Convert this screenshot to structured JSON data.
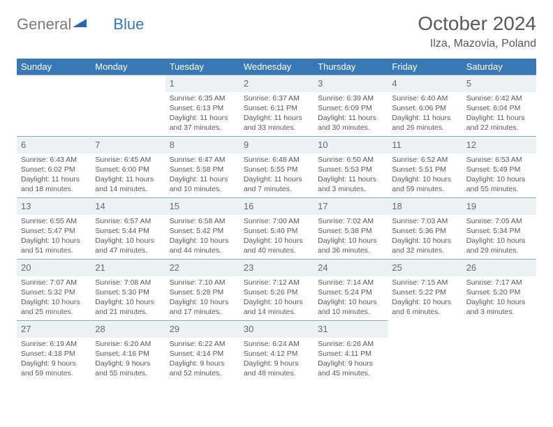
{
  "brand": {
    "part1": "General",
    "part2": "Blue"
  },
  "title": "October 2024",
  "location": "Ilza, Mazovia, Poland",
  "colors": {
    "header_bg": "#3a78b5",
    "header_text": "#ffffff",
    "daynum_bg": "#eef1f4",
    "daynum_border": "#8aa6c2",
    "text": "#595959",
    "background": "#ffffff"
  },
  "weekdays": [
    "Sunday",
    "Monday",
    "Tuesday",
    "Wednesday",
    "Thursday",
    "Friday",
    "Saturday"
  ],
  "weeks": [
    [
      null,
      null,
      {
        "n": "1",
        "sr": "6:35 AM",
        "ss": "6:13 PM",
        "dl": "11 hours and 37 minutes."
      },
      {
        "n": "2",
        "sr": "6:37 AM",
        "ss": "6:11 PM",
        "dl": "11 hours and 33 minutes."
      },
      {
        "n": "3",
        "sr": "6:39 AM",
        "ss": "6:09 PM",
        "dl": "11 hours and 30 minutes."
      },
      {
        "n": "4",
        "sr": "6:40 AM",
        "ss": "6:06 PM",
        "dl": "11 hours and 26 minutes."
      },
      {
        "n": "5",
        "sr": "6:42 AM",
        "ss": "6:04 PM",
        "dl": "11 hours and 22 minutes."
      }
    ],
    [
      {
        "n": "6",
        "sr": "6:43 AM",
        "ss": "6:02 PM",
        "dl": "11 hours and 18 minutes."
      },
      {
        "n": "7",
        "sr": "6:45 AM",
        "ss": "6:00 PM",
        "dl": "11 hours and 14 minutes."
      },
      {
        "n": "8",
        "sr": "6:47 AM",
        "ss": "5:58 PM",
        "dl": "11 hours and 10 minutes."
      },
      {
        "n": "9",
        "sr": "6:48 AM",
        "ss": "5:55 PM",
        "dl": "11 hours and 7 minutes."
      },
      {
        "n": "10",
        "sr": "6:50 AM",
        "ss": "5:53 PM",
        "dl": "11 hours and 3 minutes."
      },
      {
        "n": "11",
        "sr": "6:52 AM",
        "ss": "5:51 PM",
        "dl": "10 hours and 59 minutes."
      },
      {
        "n": "12",
        "sr": "6:53 AM",
        "ss": "5:49 PM",
        "dl": "10 hours and 55 minutes."
      }
    ],
    [
      {
        "n": "13",
        "sr": "6:55 AM",
        "ss": "5:47 PM",
        "dl": "10 hours and 51 minutes."
      },
      {
        "n": "14",
        "sr": "6:57 AM",
        "ss": "5:44 PM",
        "dl": "10 hours and 47 minutes."
      },
      {
        "n": "15",
        "sr": "6:58 AM",
        "ss": "5:42 PM",
        "dl": "10 hours and 44 minutes."
      },
      {
        "n": "16",
        "sr": "7:00 AM",
        "ss": "5:40 PM",
        "dl": "10 hours and 40 minutes."
      },
      {
        "n": "17",
        "sr": "7:02 AM",
        "ss": "5:38 PM",
        "dl": "10 hours and 36 minutes."
      },
      {
        "n": "18",
        "sr": "7:03 AM",
        "ss": "5:36 PM",
        "dl": "10 hours and 32 minutes."
      },
      {
        "n": "19",
        "sr": "7:05 AM",
        "ss": "5:34 PM",
        "dl": "10 hours and 29 minutes."
      }
    ],
    [
      {
        "n": "20",
        "sr": "7:07 AM",
        "ss": "5:32 PM",
        "dl": "10 hours and 25 minutes."
      },
      {
        "n": "21",
        "sr": "7:08 AM",
        "ss": "5:30 PM",
        "dl": "10 hours and 21 minutes."
      },
      {
        "n": "22",
        "sr": "7:10 AM",
        "ss": "5:28 PM",
        "dl": "10 hours and 17 minutes."
      },
      {
        "n": "23",
        "sr": "7:12 AM",
        "ss": "5:26 PM",
        "dl": "10 hours and 14 minutes."
      },
      {
        "n": "24",
        "sr": "7:14 AM",
        "ss": "5:24 PM",
        "dl": "10 hours and 10 minutes."
      },
      {
        "n": "25",
        "sr": "7:15 AM",
        "ss": "5:22 PM",
        "dl": "10 hours and 6 minutes."
      },
      {
        "n": "26",
        "sr": "7:17 AM",
        "ss": "5:20 PM",
        "dl": "10 hours and 3 minutes."
      }
    ],
    [
      {
        "n": "27",
        "sr": "6:19 AM",
        "ss": "4:18 PM",
        "dl": "9 hours and 59 minutes."
      },
      {
        "n": "28",
        "sr": "6:20 AM",
        "ss": "4:16 PM",
        "dl": "9 hours and 55 minutes."
      },
      {
        "n": "29",
        "sr": "6:22 AM",
        "ss": "4:14 PM",
        "dl": "9 hours and 52 minutes."
      },
      {
        "n": "30",
        "sr": "6:24 AM",
        "ss": "4:12 PM",
        "dl": "9 hours and 48 minutes."
      },
      {
        "n": "31",
        "sr": "6:26 AM",
        "ss": "4:11 PM",
        "dl": "9 hours and 45 minutes."
      },
      null,
      null
    ]
  ],
  "labels": {
    "sunrise": "Sunrise:",
    "sunset": "Sunset:",
    "daylight": "Daylight:"
  }
}
